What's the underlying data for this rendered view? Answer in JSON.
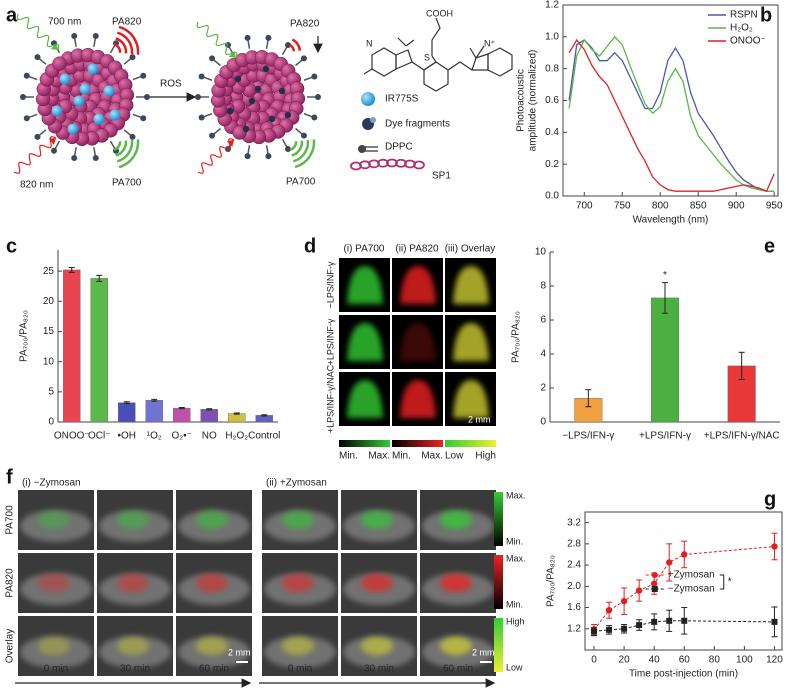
{
  "panel_a": {
    "label": "a",
    "incident": [
      "700 nm",
      "820 nm"
    ],
    "signals_before": [
      "PA820",
      "PA700"
    ],
    "arrow": "ROS",
    "signals_after": [
      "PA820",
      "PA700"
    ],
    "structure": [
      "COOH",
      "S",
      "N",
      "N⁺"
    ],
    "legend": [
      "IR775S",
      "Dye fragments",
      "DPPC",
      "SP1"
    ]
  },
  "chart_data": [
    {
      "panel": "b",
      "type": "line",
      "x": [
        680,
        690,
        700,
        710,
        720,
        730,
        740,
        750,
        760,
        770,
        780,
        790,
        800,
        810,
        820,
        830,
        840,
        850,
        860,
        870,
        880,
        890,
        900,
        910,
        920,
        930,
        940,
        950
      ],
      "series": [
        {
          "name": "RSPN",
          "color": "#4a5aa8",
          "values": [
            0.6,
            0.95,
            0.98,
            0.93,
            0.85,
            0.85,
            0.9,
            0.85,
            0.75,
            0.65,
            0.55,
            0.55,
            0.65,
            0.85,
            0.93,
            0.85,
            0.65,
            0.52,
            0.45,
            0.38,
            0.3,
            0.22,
            0.15,
            0.1,
            0.07,
            0.04,
            0.03,
            0.03
          ]
        },
        {
          "name": "H₂O₂",
          "color": "#5cb84a",
          "values": [
            0.55,
            0.88,
            0.98,
            0.92,
            0.88,
            0.94,
            1.0,
            0.95,
            0.82,
            0.7,
            0.58,
            0.52,
            0.56,
            0.72,
            0.8,
            0.72,
            0.5,
            0.38,
            0.32,
            0.26,
            0.2,
            0.15,
            0.1,
            0.07,
            0.05,
            0.04,
            0.03,
            0.03
          ]
        },
        {
          "name": "ONOO⁻",
          "color": "#e02020",
          "values": [
            0.9,
            0.98,
            0.92,
            0.82,
            0.75,
            0.7,
            0.6,
            0.5,
            0.4,
            0.3,
            0.22,
            0.12,
            0.07,
            0.04,
            0.03,
            0.03,
            0.03,
            0.03,
            0.03,
            0.03,
            0.04,
            0.05,
            0.06,
            0.07,
            0.06,
            0.05,
            0.03,
            0.14
          ]
        }
      ],
      "xlabel": "Wavelength (nm)",
      "ylabel": [
        "Photoacoustic",
        "amplitude (normalized)"
      ],
      "xlim": [
        672,
        955
      ],
      "ylim": [
        0,
        1.2
      ],
      "xticks": [
        700,
        750,
        800,
        850,
        900,
        950
      ],
      "yticks": [
        {
          "value": 0,
          "label": "0.0"
        },
        0.2,
        0.4,
        0.6,
        0.8,
        {
          "value": 1,
          "label": "1.0"
        },
        1.2
      ],
      "legend": "upper right"
    },
    {
      "panel": "c",
      "type": "bar",
      "categories": [
        "ONOO⁻",
        "OCl⁻",
        "•OH",
        "¹O₂",
        "O₂•⁻",
        "NO",
        "H₂O₂",
        "Control"
      ],
      "values": [
        25.2,
        23.8,
        3.2,
        3.6,
        2.3,
        2.1,
        1.4,
        1.1
      ],
      "errors": [
        0.4,
        0.5,
        0.15,
        0.15,
        0.1,
        0.1,
        0.1,
        0.1
      ],
      "colors": [
        "#e8454f",
        "#5cb84a",
        "#4a4fb8",
        "#7272d2",
        "#c050a8",
        "#8050b0",
        "#d0c040",
        "#6060c0"
      ],
      "ylabel": "PA₇₀₀/PA₈₂₀",
      "ylim": [
        0,
        28.5
      ],
      "yticks": [
        0,
        5,
        10,
        15,
        20,
        25
      ]
    },
    {
      "panel": "e",
      "type": "bar",
      "categories": [
        "−LPS/IFN-γ",
        "+LPS/IFN-γ",
        "+LPS/IFN-γ/NAC"
      ],
      "values": [
        1.4,
        7.3,
        3.3
      ],
      "errors": [
        0.5,
        0.9,
        0.8
      ],
      "colors": [
        "#f0a040",
        "#4cb040",
        "#e83838"
      ],
      "ylabel": "PA₇₀₀/PA₈₂₀",
      "ylim": [
        0,
        10
      ],
      "yticks": [
        0,
        2,
        4,
        6,
        8,
        10
      ],
      "annotations": [
        {
          "text": "*",
          "category": "+LPS/IFN-γ"
        }
      ]
    },
    {
      "panel": "g",
      "type": "scatter",
      "x": [
        0,
        10,
        20,
        30,
        40,
        50,
        60,
        120
      ],
      "series": [
        {
          "name": "+Zymosan",
          "color": "#e02020",
          "marker": "circle",
          "values": [
            1.18,
            1.55,
            1.72,
            1.92,
            2.05,
            2.45,
            2.6,
            2.75
          ],
          "errors": [
            0.1,
            0.15,
            0.25,
            0.2,
            0.2,
            0.35,
            0.25,
            0.25
          ]
        },
        {
          "name": "−Zymosan",
          "color": "#222222",
          "marker": "square",
          "values": [
            1.15,
            1.18,
            1.2,
            1.27,
            1.33,
            1.35,
            1.35,
            1.33
          ],
          "errors": [
            0.08,
            0.08,
            0.08,
            0.1,
            0.15,
            0.2,
            0.25,
            0.28
          ]
        }
      ],
      "xlabel": "Time post-injection (min)",
      "ylabel": "PA₇₀₀/PA₈₂₀",
      "xlim": [
        -6,
        125
      ],
      "ylim": [
        0.8,
        3.4
      ],
      "xticks": [
        0,
        20,
        40,
        60,
        80,
        100,
        120
      ],
      "yticks": [
        1.2,
        1.6,
        {
          "value": 2,
          "label": "2.0"
        },
        2.4,
        2.8,
        3.2
      ],
      "legend": "center",
      "legend_note": "*"
    }
  ],
  "panel_d": {
    "label": "d",
    "columns": [
      "(i) PA700",
      "(ii) PA820",
      "(iii) Overlay"
    ],
    "rows": [
      "−LPS/INF-γ",
      "+LPS/INF-γ",
      "+LPS/INF-γ/NAC"
    ],
    "scale_bar": "2 mm",
    "colorbars": [
      [
        "Min.",
        "Max."
      ],
      [
        "Min.",
        "Max."
      ],
      [
        "Low",
        "High"
      ]
    ]
  },
  "panel_f": {
    "label": "f",
    "groups": [
      "(i) −Zymosan",
      "(ii) +Zymosan"
    ],
    "rows": [
      "PA700",
      "PA820",
      "Overlay"
    ],
    "times": [
      "0 min",
      "30 min",
      "60 min"
    ],
    "scale_bar": "2 mm",
    "colorbars": [
      [
        "Max.",
        "Min."
      ],
      [
        "Max.",
        "Min."
      ],
      [
        "High",
        "Low"
      ]
    ]
  }
}
